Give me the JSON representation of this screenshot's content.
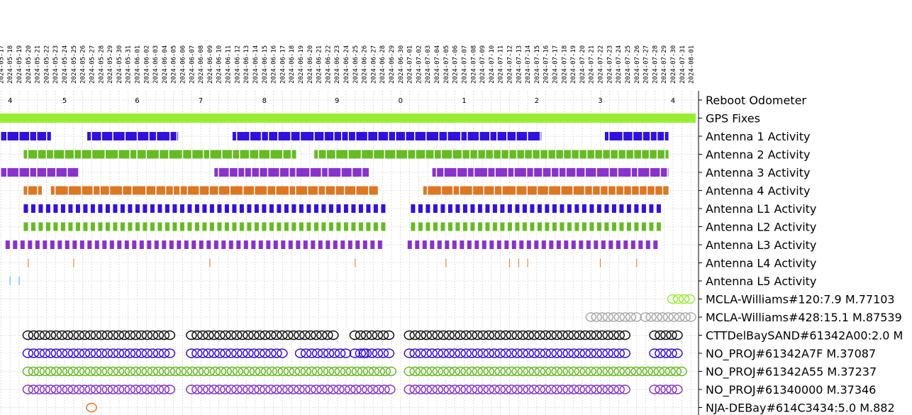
{
  "chart_data": {
    "type": "scatter",
    "title": "",
    "x_axis": {
      "type": "date",
      "tick_labels": [
        "2024-05-17",
        "2024-05-18",
        "2024-05-19",
        "2024-05-20",
        "2024-05-21",
        "2024-05-22",
        "2024-05-23",
        "2024-05-24",
        "2024-05-25",
        "2024-05-26",
        "2024-05-27",
        "2024-05-28",
        "2024-05-29",
        "2024-05-30",
        "2024-05-31",
        "2024-06-01",
        "2024-06-02",
        "2024-06-03",
        "2024-06-04",
        "2024-06-05",
        "2024-06-06",
        "2024-06-07",
        "2024-06-08",
        "2024-06-09",
        "2024-06-10",
        "2024-06-11",
        "2024-06-12",
        "2024-06-13",
        "2024-06-14",
        "2024-06-15",
        "2024-06-16",
        "2024-06-17",
        "2024-06-18",
        "2024-06-19",
        "2024-06-20",
        "2024-06-21",
        "2024-06-22",
        "2024-06-23",
        "2024-06-24",
        "2024-06-25",
        "2024-06-26",
        "2024-06-27",
        "2024-06-28",
        "2024-06-29",
        "2024-06-30",
        "2024-07-01",
        "2024-07-02",
        "2024-07-03",
        "2024-07-04",
        "2024-07-05",
        "2024-07-06",
        "2024-07-07",
        "2024-07-08",
        "2024-07-09",
        "2024-07-10",
        "2024-07-11",
        "2024-07-12",
        "2024-07-13",
        "2024-07-14",
        "2024-07-15",
        "2024-07-16",
        "2024-07-17",
        "2024-07-18",
        "2024-07-19",
        "2024-07-20",
        "2024-07-21",
        "2024-07-22",
        "2024-07-23",
        "2024-07-24",
        "2024-07-25",
        "2024-07-26",
        "2024-07-27",
        "2024-07-28",
        "2024-07-29",
        "2024-07-30",
        "2024-07-31",
        "2024-08-01"
      ],
      "range": [
        "2024-05-17",
        "2024-08-02"
      ],
      "grid": true
    },
    "rows": [
      "Reboot Odometer",
      "GPS Fixes",
      "Antenna 1 Activity",
      "Antenna 2 Activity",
      "Antenna 3 Activity",
      "Antenna 4 Activity",
      "Antenna L1 Activity",
      "Antenna L2 Activity",
      "Antenna L3 Activity",
      "Antenna L4 Activity",
      "Antenna L5 Activity",
      "MCLA-Williams#120:7.9 M.77103",
      "MCLA-Williams#428:15.1 M.87539",
      "CTTDelBaySAND#61342A00:2.0 M",
      "NO_PROJ#61342A7F M.37087",
      "NO_PROJ#61342A55 M.37237",
      "NO_PROJ#61340000 M.37346",
      "NJA-DEBay#614C3434:5.0 M.882"
    ],
    "reboot_odometer": [
      {
        "date": "2024-05-18",
        "label": "4"
      },
      {
        "date": "2024-05-24",
        "label": "5"
      },
      {
        "date": "2024-06-01",
        "label": "6"
      },
      {
        "date": "2024-06-08",
        "label": "7"
      },
      {
        "date": "2024-06-15",
        "label": "8"
      },
      {
        "date": "2024-06-23",
        "label": "9"
      },
      {
        "date": "2024-06-30",
        "label": "0"
      },
      {
        "date": "2024-07-07",
        "label": "1"
      },
      {
        "date": "2024-07-15",
        "label": "2"
      },
      {
        "date": "2024-07-22",
        "label": "3"
      },
      {
        "date": "2024-07-30",
        "label": "4"
      }
    ],
    "series": [
      {
        "row": 1,
        "style": "bar",
        "color": "#99ee33",
        "spans": [
          [
            "2024-05-17",
            "2024-08-01"
          ]
        ]
      },
      {
        "row": 2,
        "style": "bar",
        "color": "#3311dd",
        "spans": [
          [
            "2024-05-17",
            "2024-05-22"
          ],
          [
            "2024-05-27",
            "2024-06-05"
          ],
          [
            "2024-06-12",
            "2024-07-15"
          ],
          [
            "2024-07-23",
            "2024-07-29"
          ]
        ]
      },
      {
        "row": 3,
        "style": "bar",
        "color": "#66bb22",
        "spans": [
          [
            "2024-05-20",
            "2024-06-18"
          ],
          [
            "2024-06-21",
            "2024-07-29"
          ]
        ]
      },
      {
        "row": 4,
        "style": "bar",
        "color": "#8833cc",
        "spans": [
          [
            "2024-05-17",
            "2024-05-25"
          ],
          [
            "2024-06-10",
            "2024-06-26"
          ],
          [
            "2024-07-04",
            "2024-07-29"
          ]
        ]
      },
      {
        "row": 5,
        "style": "bar",
        "color": "#dd7722",
        "spans": [
          [
            "2024-05-20",
            "2024-05-21"
          ],
          [
            "2024-05-23",
            "2024-06-27"
          ],
          [
            "2024-07-03",
            "2024-07-29"
          ]
        ]
      },
      {
        "row": 6,
        "style": "ticks",
        "color": "#3311dd",
        "spans": [
          [
            "2024-05-20",
            "2024-07-28"
          ]
        ]
      },
      {
        "row": 7,
        "style": "ticks",
        "color": "#66bb22",
        "spans": [
          [
            "2024-05-20",
            "2024-07-28"
          ]
        ]
      },
      {
        "row": 8,
        "style": "ticks",
        "color": "#8833cc",
        "spans": [
          [
            "2024-05-18",
            "2024-07-28"
          ]
        ]
      },
      {
        "row": 9,
        "style": "lines",
        "color": "#dd7722",
        "dates": [
          "2024-05-20",
          "2024-05-25",
          "2024-06-09",
          "2024-06-25",
          "2024-07-05",
          "2024-07-12",
          "2024-07-13",
          "2024-07-14",
          "2024-07-22",
          "2024-07-26"
        ]
      },
      {
        "row": 10,
        "style": "lines",
        "color": "#44aadd",
        "dates": [
          "2024-05-18",
          "2024-05-19"
        ]
      },
      {
        "row": 11,
        "style": "circles",
        "color": "#99ee33",
        "spans": [
          [
            "2024-07-30",
            "2024-08-01"
          ]
        ]
      },
      {
        "row": 12,
        "style": "circles",
        "color": "#aaaaaa",
        "spans": [
          [
            "2024-07-21",
            "2024-07-26"
          ],
          [
            "2024-07-27",
            "2024-08-01"
          ]
        ]
      },
      {
        "row": 13,
        "style": "circles",
        "color": "#111111",
        "spans": [
          [
            "2024-05-20",
            "2024-06-05"
          ],
          [
            "2024-06-07",
            "2024-06-23"
          ],
          [
            "2024-06-25",
            "2024-06-29"
          ],
          [
            "2024-07-01",
            "2024-07-25"
          ],
          [
            "2024-07-28",
            "2024-07-31"
          ]
        ]
      },
      {
        "row": 14,
        "style": "circles",
        "color": "#3311dd",
        "spans": [
          [
            "2024-05-20",
            "2024-06-05"
          ],
          [
            "2024-06-07",
            "2024-06-17"
          ],
          [
            "2024-06-19",
            "2024-06-24"
          ],
          [
            "2024-06-26",
            "2024-06-26"
          ],
          [
            "2024-06-25",
            "2024-06-29"
          ],
          [
            "2024-07-01",
            "2024-07-25"
          ],
          [
            "2024-07-28",
            "2024-07-31"
          ]
        ]
      },
      {
        "row": 15,
        "style": "circles",
        "color": "#66bb22",
        "spans": [
          [
            "2024-05-20",
            "2024-06-29"
          ],
          [
            "2024-07-01",
            "2024-07-31"
          ]
        ]
      },
      {
        "row": 16,
        "style": "circles",
        "color": "#8833cc",
        "spans": [
          [
            "2024-05-20",
            "2024-06-05"
          ],
          [
            "2024-06-07",
            "2024-06-29"
          ],
          [
            "2024-07-01",
            "2024-07-25"
          ],
          [
            "2024-07-28",
            "2024-07-31"
          ]
        ]
      },
      {
        "row": 17,
        "style": "circles",
        "color": "#dd7722",
        "spans": [
          [
            "2024-05-27",
            "2024-05-27"
          ]
        ]
      }
    ]
  }
}
